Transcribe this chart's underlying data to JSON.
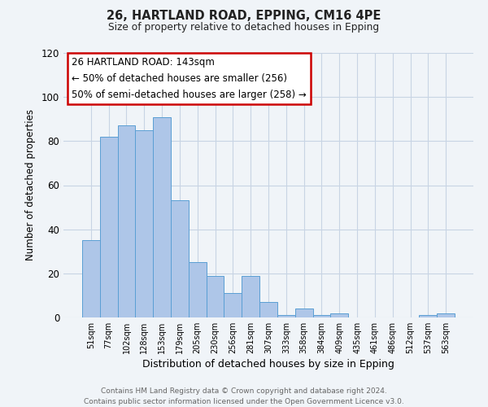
{
  "title": "26, HARTLAND ROAD, EPPING, CM16 4PE",
  "subtitle": "Size of property relative to detached houses in Epping",
  "xlabel": "Distribution of detached houses by size in Epping",
  "ylabel": "Number of detached properties",
  "bar_color": "#aec6e8",
  "bar_edge_color": "#5a9fd4",
  "categories": [
    "51sqm",
    "77sqm",
    "102sqm",
    "128sqm",
    "153sqm",
    "179sqm",
    "205sqm",
    "230sqm",
    "256sqm",
    "281sqm",
    "307sqm",
    "333sqm",
    "358sqm",
    "384sqm",
    "409sqm",
    "435sqm",
    "461sqm",
    "486sqm",
    "512sqm",
    "537sqm",
    "563sqm"
  ],
  "values": [
    35,
    82,
    87,
    85,
    91,
    53,
    25,
    19,
    11,
    19,
    7,
    1,
    4,
    1,
    2,
    0,
    0,
    0,
    0,
    1,
    2
  ],
  "ylim": [
    0,
    120
  ],
  "yticks": [
    0,
    20,
    40,
    60,
    80,
    100,
    120
  ],
  "annotation_box_text_line1": "26 HARTLAND ROAD: 143sqm",
  "annotation_box_text_line2": "← 50% of detached houses are smaller (256)",
  "annotation_box_text_line3": "50% of semi-detached houses are larger (258) →",
  "annotation_box_color": "white",
  "annotation_box_edge_color": "#cc0000",
  "footer_line1": "Contains HM Land Registry data © Crown copyright and database right 2024.",
  "footer_line2": "Contains public sector information licensed under the Open Government Licence v3.0.",
  "bg_color": "#f0f4f8",
  "grid_color": "#c8d4e4"
}
